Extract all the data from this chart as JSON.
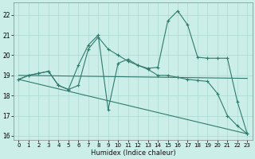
{
  "xlabel": "Humidex (Indice chaleur)",
  "background_color": "#cceee8",
  "grid_color": "#aad8d2",
  "line_color": "#2e7b6e",
  "xlim": [
    -0.5,
    23.5
  ],
  "ylim": [
    15.8,
    22.6
  ],
  "yticks": [
    16,
    17,
    18,
    19,
    20,
    21,
    22
  ],
  "xticks": [
    0,
    1,
    2,
    3,
    4,
    5,
    6,
    7,
    8,
    9,
    10,
    11,
    12,
    13,
    14,
    15,
    16,
    17,
    18,
    19,
    20,
    21,
    22,
    23
  ],
  "lines": [
    {
      "x": [
        0,
        1,
        2,
        3,
        4,
        5,
        6,
        7,
        8,
        9,
        10,
        11,
        12,
        13,
        14,
        15,
        16,
        17,
        18,
        19,
        20,
        21,
        22,
        23
      ],
      "y": [
        18.8,
        19.0,
        19.1,
        19.2,
        18.5,
        18.3,
        19.5,
        20.5,
        21.0,
        17.3,
        19.6,
        19.8,
        19.5,
        19.35,
        19.4,
        21.7,
        22.2,
        21.5,
        19.9,
        19.85,
        19.85,
        19.85,
        17.7,
        16.1
      ],
      "marker": true
    },
    {
      "x": [
        0,
        1,
        2,
        3,
        4,
        5,
        6,
        7,
        8,
        9,
        10,
        11,
        12,
        13,
        14,
        15,
        16,
        17,
        18,
        19,
        20,
        21,
        22,
        23
      ],
      "y": [
        18.8,
        19.0,
        19.1,
        19.2,
        18.5,
        18.3,
        18.5,
        20.3,
        20.9,
        20.3,
        20.0,
        19.7,
        19.5,
        19.3,
        19.0,
        19.0,
        18.9,
        18.8,
        18.75,
        18.7,
        18.1,
        17.0,
        16.5,
        16.1
      ],
      "marker": true
    },
    {
      "x": [
        0,
        23
      ],
      "y": [
        19.0,
        18.85
      ],
      "marker": false
    },
    {
      "x": [
        0,
        23
      ],
      "y": [
        18.8,
        16.1
      ],
      "marker": false
    }
  ]
}
